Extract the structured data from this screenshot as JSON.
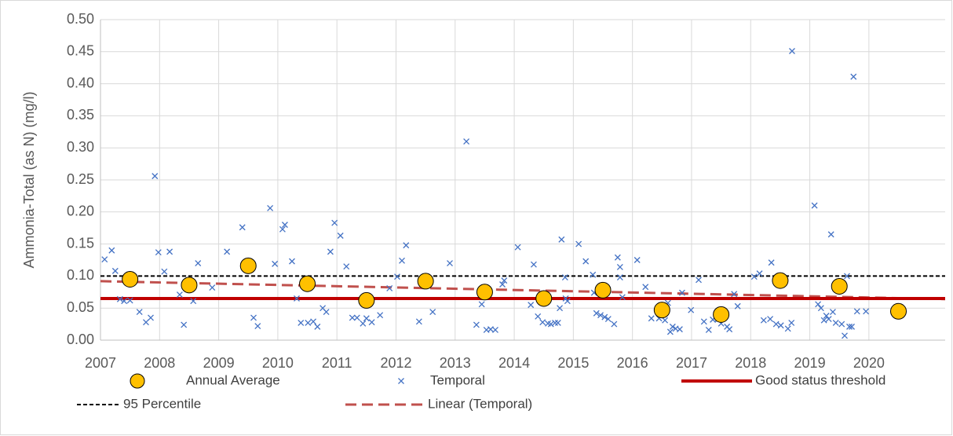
{
  "chart_data": {
    "type": "scatter",
    "y_label": "Ammonia-Total (as N) (mg/l)",
    "xlim": [
      2007,
      2021.29
    ],
    "xticks": [
      2007,
      2008,
      2009,
      2010,
      2011,
      2012,
      2013,
      2014,
      2015,
      2016,
      2017,
      2018,
      2019,
      2020
    ],
    "ylim": [
      0,
      0.5
    ],
    "yticks": [
      {
        "value": 0,
        "label": "0.00"
      },
      {
        "value": 0.05,
        "label": "0.05"
      },
      {
        "value": 0.1,
        "label": "0.10"
      },
      {
        "value": 0.15,
        "label": "0.15"
      },
      {
        "value": 0.2,
        "label": "0.20"
      },
      {
        "value": 0.25,
        "label": "0.25"
      },
      {
        "value": 0.3,
        "label": "0.30"
      },
      {
        "value": 0.35,
        "label": "0.35"
      },
      {
        "value": 0.4,
        "label": "0.40"
      },
      {
        "value": 0.45,
        "label": "0.45"
      },
      {
        "value": 0.5,
        "label": "0.50"
      }
    ],
    "grid": true,
    "legend": "bottom",
    "series": [
      {
        "name": "Annual Average",
        "style": "circle",
        "color": "#ffc000",
        "x": [
          2007.5,
          2008.5,
          2009.5,
          2010.5,
          2011.5,
          2012.5,
          2013.5,
          2014.5,
          2015.5,
          2016.5,
          2017.5,
          2018.5,
          2019.5,
          2020.5
        ],
        "values": [
          0.095,
          0.086,
          0.116,
          0.088,
          0.062,
          0.092,
          0.075,
          0.065,
          0.078,
          0.047,
          0.04,
          0.093,
          0.084,
          0.045
        ]
      },
      {
        "name": "Temporal",
        "style": "cross",
        "color": "#4472c4",
        "x": [
          2007.07,
          2007.19,
          2007.25,
          2007.33,
          2007.4,
          2007.5,
          2007.66,
          2007.77,
          2007.85,
          2007.92,
          2007.98,
          2008.08,
          2008.17,
          2008.34,
          2008.41,
          2008.57,
          2008.65,
          2008.89,
          2009.14,
          2009.4,
          2009.59,
          2009.66,
          2009.87,
          2009.95,
          2010.08,
          2010.12,
          2010.24,
          2010.32,
          2010.39,
          2010.51,
          2010.6,
          2010.67,
          2010.76,
          2010.82,
          2010.89,
          2010.96,
          2011.06,
          2011.16,
          2011.26,
          2011.34,
          2011.44,
          2011.5,
          2011.59,
          2011.73,
          2011.89,
          2012.02,
          2012.1,
          2012.17,
          2012.39,
          2012.47,
          2012.62,
          2012.91,
          2013.19,
          2013.36,
          2013.45,
          2013.53,
          2013.6,
          2013.68,
          2013.8,
          2013.83,
          2014.06,
          2014.28,
          2014.33,
          2014.4,
          2014.48,
          2014.57,
          2014.62,
          2014.69,
          2014.74,
          2014.77,
          2014.8,
          2014.86,
          2014.87,
          2014.9,
          2015.09,
          2015.21,
          2015.33,
          2015.35,
          2015.39,
          2015.46,
          2015.53,
          2015.59,
          2015.69,
          2015.75,
          2015.79,
          2015.79,
          2015.83,
          2016.08,
          2016.22,
          2016.32,
          2016.45,
          2016.55,
          2016.6,
          2016.64,
          2016.68,
          2016.73,
          2016.8,
          2016.84,
          2016.99,
          2017.12,
          2017.21,
          2017.29,
          2017.36,
          2017.44,
          2017.5,
          2017.6,
          2017.64,
          2017.72,
          2017.78,
          2018.06,
          2018.15,
          2018.22,
          2018.33,
          2018.35,
          2018.43,
          2018.51,
          2018.63,
          2018.69,
          2018.7,
          2019.08,
          2019.14,
          2019.19,
          2019.24,
          2019.28,
          2019.32,
          2019.36,
          2019.39,
          2019.44,
          2019.54,
          2019.59,
          2019.63,
          2019.67,
          2019.71,
          2019.74,
          2019.8,
          2019.95
        ],
        "values": [
          0.126,
          0.14,
          0.108,
          0.064,
          0.061,
          0.062,
          0.044,
          0.028,
          0.035,
          0.256,
          0.137,
          0.107,
          0.138,
          0.071,
          0.024,
          0.061,
          0.12,
          0.082,
          0.138,
          0.176,
          0.035,
          0.022,
          0.206,
          0.119,
          0.173,
          0.18,
          0.123,
          0.065,
          0.027,
          0.027,
          0.029,
          0.021,
          0.05,
          0.044,
          0.138,
          0.183,
          0.163,
          0.115,
          0.035,
          0.035,
          0.026,
          0.034,
          0.028,
          0.039,
          0.081,
          0.099,
          0.124,
          0.148,
          0.029,
          0.089,
          0.044,
          0.12,
          0.31,
          0.024,
          0.056,
          0.016,
          0.017,
          0.016,
          0.087,
          0.093,
          0.145,
          0.055,
          0.118,
          0.037,
          0.028,
          0.026,
          0.025,
          0.027,
          0.027,
          0.05,
          0.157,
          0.098,
          0.065,
          0.061,
          0.15,
          0.123,
          0.102,
          0.074,
          0.042,
          0.039,
          0.036,
          0.033,
          0.025,
          0.129,
          0.114,
          0.098,
          0.067,
          0.125,
          0.083,
          0.034,
          0.034,
          0.031,
          0.058,
          0.013,
          0.021,
          0.018,
          0.017,
          0.074,
          0.047,
          0.094,
          0.029,
          0.016,
          0.032,
          0.032,
          0.026,
          0.021,
          0.017,
          0.072,
          0.053,
          0.099,
          0.104,
          0.031,
          0.033,
          0.121,
          0.025,
          0.023,
          0.018,
          0.027,
          0.451,
          0.21,
          0.056,
          0.05,
          0.031,
          0.038,
          0.033,
          0.165,
          0.044,
          0.027,
          0.025,
          0.007,
          0.1,
          0.021,
          0.021,
          0.411,
          0.045,
          0.045
        ]
      },
      {
        "name": "Good status threshold",
        "style": "hline",
        "color": "#c00000",
        "value": 0.065
      },
      {
        "name": "95 Percentile",
        "style": "dashed-hline",
        "color": "#000000",
        "value": 0.1
      },
      {
        "name": "Linear (Temporal)",
        "style": "dashed-line",
        "color": "#c0504d",
        "x": [
          2007,
          2021.29
        ],
        "values": [
          0.092,
          0.064
        ]
      }
    ]
  }
}
